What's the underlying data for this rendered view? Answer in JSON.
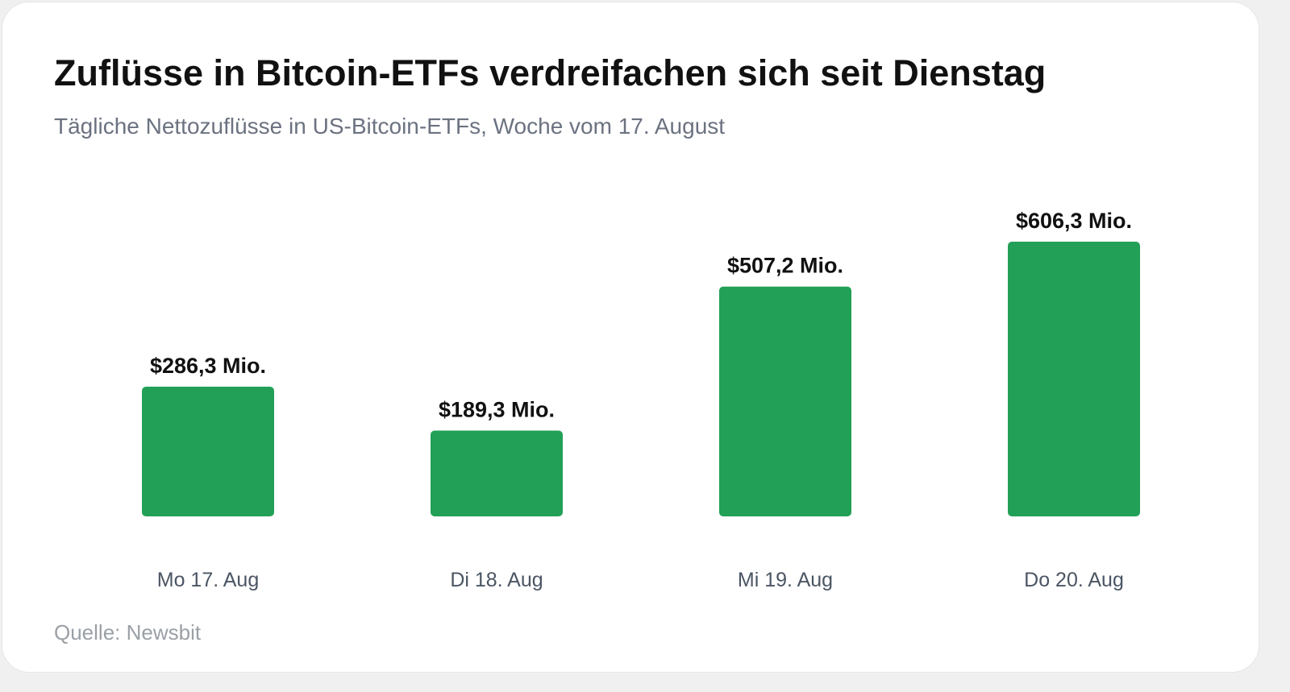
{
  "header": {
    "title": "Zuflüsse in Bitcoin-ETFs verdreifachen sich seit Dienstag",
    "subtitle": "Tägliche Nettozuflüsse in US-Bitcoin-ETFs, Woche vom 17. August"
  },
  "footer": {
    "source": "Quelle: Newsbit"
  },
  "colors": {
    "bar": "#22a057",
    "background": "#ffffff"
  },
  "chart_data": {
    "type": "bar",
    "title": "Zuflüsse in Bitcoin-ETFs verdreifachen sich seit Dienstag",
    "subtitle": "Tägliche Nettozuflüsse in US-Bitcoin-ETFs, Woche vom 17. August",
    "categories": [
      "Mo 17. Aug",
      "Di 18. Aug",
      "Mi 19. Aug",
      "Do 20. Aug"
    ],
    "values": [
      286.3,
      189.3,
      507.2,
      606.3
    ],
    "value_labels": [
      "$286,3 Mio.",
      "$189,3 Mio.",
      "$507,2 Mio.",
      "$606,3 Mio."
    ],
    "xlabel": "",
    "ylabel": "",
    "ylim": [
      0,
      606.3
    ],
    "grid": false,
    "legend": "none"
  }
}
